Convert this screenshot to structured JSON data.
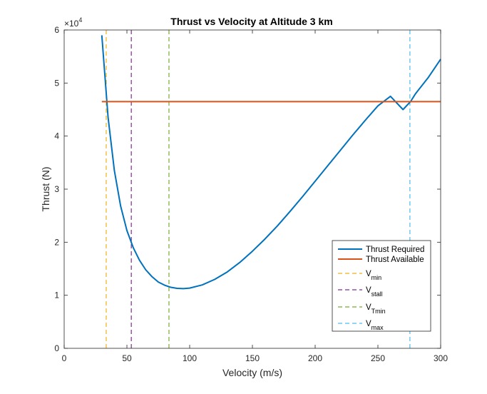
{
  "chart_data": {
    "type": "line",
    "title": "Thrust vs Velocity at Altitude 3 km",
    "xlabel": "Velocity (m/s)",
    "ylabel": "Thrust (N)",
    "y_exponent_label": "×10",
    "y_exponent_power": "4",
    "xlim": [
      0,
      300
    ],
    "ylim": [
      0,
      60000
    ],
    "xticks": [
      0,
      50,
      100,
      150,
      200,
      250,
      300
    ],
    "yticks": [
      0,
      10000,
      20000,
      30000,
      40000,
      50000,
      60000
    ],
    "xtick_labels": [
      "0",
      "50",
      "100",
      "150",
      "200",
      "250",
      "300"
    ],
    "ytick_labels": [
      "0",
      "1",
      "2",
      "3",
      "4",
      "5",
      "6"
    ],
    "grid": false,
    "legend_position": "bottom-right",
    "series": [
      {
        "name": "Thrust Required",
        "style": "solid",
        "color": "#0072BD",
        "x": [
          30,
          35,
          40,
          45,
          50,
          55,
          60,
          65,
          70,
          75,
          80,
          85,
          90,
          95,
          100,
          110,
          120,
          130,
          140,
          150,
          160,
          170,
          180,
          190,
          200,
          210,
          220,
          230,
          240,
          250,
          260,
          270,
          276,
          280,
          290,
          300
        ],
        "y": [
          59000,
          43500,
          33500,
          26800,
          22200,
          19000,
          16600,
          14800,
          13500,
          12500,
          11900,
          11500,
          11300,
          11250,
          11350,
          11950,
          13000,
          14400,
          16200,
          18300,
          20600,
          23100,
          25800,
          28600,
          31500,
          34400,
          37300,
          40200,
          43000,
          45700,
          47500,
          45000,
          46500,
          48000,
          51000,
          54500
        ]
      },
      {
        "name": "Thrust Available",
        "style": "solid",
        "color": "#D95319",
        "x": [
          30,
          300
        ],
        "y": [
          46500,
          46500
        ]
      }
    ],
    "vertical_lines": [
      {
        "name_main": "V",
        "name_sub": "min",
        "x": 33.5,
        "color": "#EDB120"
      },
      {
        "name_main": "V",
        "name_sub": "stall",
        "x": 53.5,
        "color": "#7E2F8E"
      },
      {
        "name_main": "V",
        "name_sub": "Tmin",
        "x": 83.5,
        "color": "#77AC30"
      },
      {
        "name_main": "V",
        "name_sub": "max",
        "x": 275.5,
        "color": "#4DBEEE"
      }
    ]
  }
}
